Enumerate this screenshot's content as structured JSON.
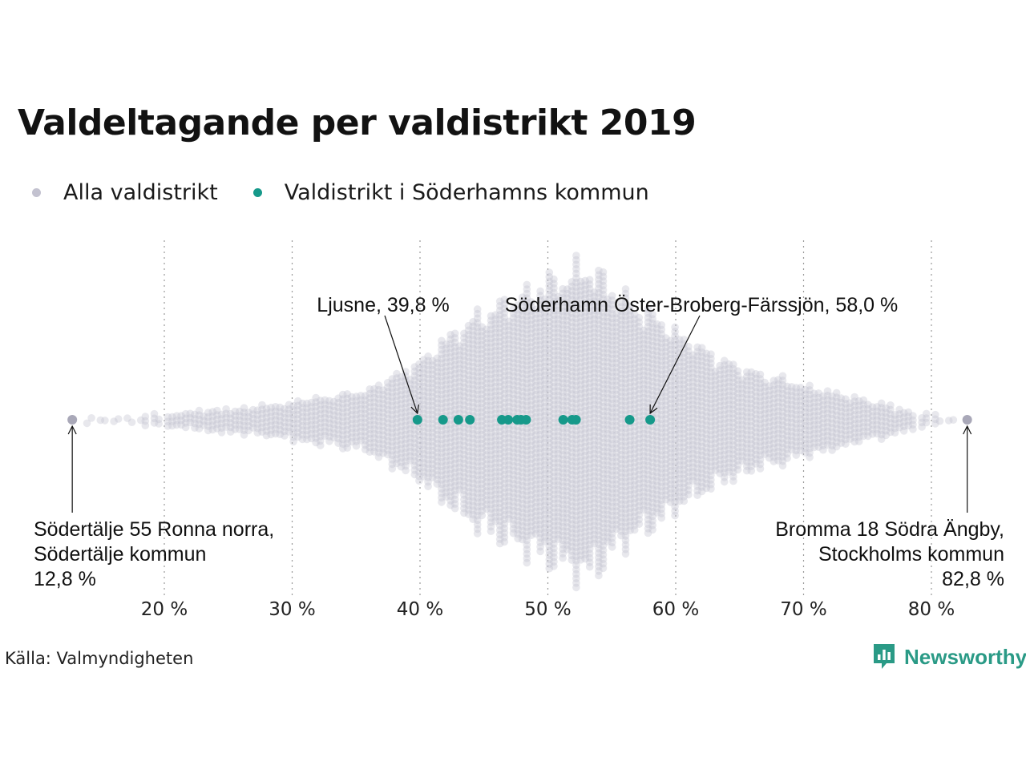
{
  "title": "Valdeltagande per valdistrikt 2019",
  "legend": [
    {
      "label": "Alla valdistrikt",
      "color": "#c3c2d0"
    },
    {
      "label": "Valdistrikt i Söderhamns kommun",
      "color": "#16998a"
    }
  ],
  "source": "Källa: Valmyndigheten",
  "brand": "Newsworthy",
  "chart_data": {
    "type": "scatter",
    "subtype": "beeswarm",
    "xlim": [
      12,
      84
    ],
    "x_ticks": [
      {
        "value": 20,
        "label": "20 %"
      },
      {
        "value": 30,
        "label": "30 %"
      },
      {
        "value": 40,
        "label": "40 %"
      },
      {
        "value": 50,
        "label": "50 %"
      },
      {
        "value": 60,
        "label": "60 %"
      },
      {
        "value": 70,
        "label": "70 %"
      },
      {
        "value": 80,
        "label": "80 %"
      }
    ],
    "grid": "vertical dotted",
    "series": [
      {
        "name": "Alla valdistrikt",
        "color": "#c3c2d0",
        "extremes": [
          12.8,
          82.8
        ],
        "min": 12.8,
        "max": 82.8
      },
      {
        "name": "Valdistrikt i Söderhamns kommun",
        "color": "#16998a",
        "values": [
          39.8,
          41.8,
          43.0,
          43.9,
          46.4,
          46.9,
          47.6,
          47.9,
          48.3,
          51.2,
          51.9,
          52.2,
          56.4,
          58.0
        ]
      }
    ],
    "annotations": [
      {
        "x": 39.8,
        "lines": [
          "Ljusne, 39,8 %"
        ]
      },
      {
        "x": 58.0,
        "lines": [
          "Söderhamn Öster-Broberg-Färssjön, 58,0 %"
        ]
      },
      {
        "x": 12.8,
        "lines": [
          "Södertälje 55 Ronna norra,",
          "Södertälje kommun",
          "12,8 %"
        ]
      },
      {
        "x": 82.8,
        "lines": [
          "Bromma 18 Södra Ängby,",
          "Stockholms kommun",
          "82,8 %"
        ]
      }
    ]
  }
}
